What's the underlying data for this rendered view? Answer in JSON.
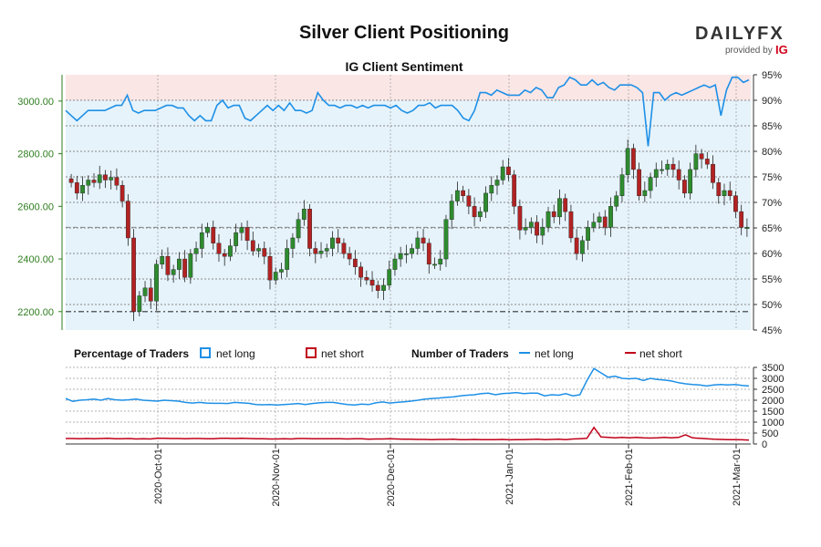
{
  "title": "Silver Client Positioning",
  "subtitle": "IG Client Sentiment",
  "brand": {
    "main": "DAILYFX",
    "provided_by": "provided by",
    "ig": "IG",
    "accent": "#d0021b"
  },
  "legend": {
    "pct_heading": "Percentage of Traders",
    "pct_long": "net long",
    "pct_short": "net short",
    "num_heading": "Number of Traders",
    "num_long": "net long",
    "num_short": "net short"
  },
  "colors": {
    "long": "#1e90e6",
    "short": "#c0001a",
    "bull_candle": "#2e8b2e",
    "bear_candle": "#b22222",
    "long_zone": "#e6f3fb",
    "short_zone": "#fbe6e6",
    "price_axis": "#2e7d1e"
  },
  "chart_data": [
    {
      "type": "candlestick",
      "title": "IG Client Sentiment",
      "price_axis": {
        "ticks": [
          "2200.00",
          "2400.00",
          "2600.00",
          "2800.00",
          "3000.00"
        ],
        "ylim": [
          2130,
          3100
        ]
      },
      "pct_axis": {
        "ticks": [
          "45%",
          "50%",
          "55%",
          "60%",
          "65%",
          "70%",
          "75%",
          "80%",
          "85%",
          "90%",
          "95%"
        ],
        "ylim": [
          45,
          95
        ]
      },
      "x_ticks": [
        "2020-Oct-01",
        "2020-Nov-01",
        "2020-Dec-01",
        "2021-Jan-01",
        "2021-Feb-01",
        "2021-Mar-01"
      ],
      "reference_lines": {
        "price": 2200,
        "last_price": 2520
      },
      "close_series": [
        2690,
        2650,
        2680,
        2700,
        2690,
        2720,
        2700,
        2710,
        2680,
        2620,
        2480,
        2200,
        2260,
        2290,
        2240,
        2380,
        2410,
        2340,
        2360,
        2400,
        2330,
        2420,
        2440,
        2500,
        2520,
        2460,
        2420,
        2410,
        2450,
        2500,
        2520,
        2470,
        2430,
        2440,
        2410,
        2320,
        2350,
        2360,
        2440,
        2480,
        2550,
        2590,
        2440,
        2420,
        2430,
        2440,
        2480,
        2460,
        2420,
        2400,
        2370,
        2330,
        2320,
        2300,
        2280,
        2300,
        2360,
        2400,
        2420,
        2420,
        2440,
        2480,
        2460,
        2380,
        2380,
        2400,
        2550,
        2620,
        2660,
        2640,
        2600,
        2560,
        2580,
        2650,
        2680,
        2700,
        2750,
        2720,
        2600,
        2510,
        2520,
        2540,
        2490,
        2520,
        2580,
        2560,
        2630,
        2580,
        2480,
        2420,
        2470,
        2520,
        2540,
        2560,
        2520,
        2600,
        2640,
        2720,
        2820,
        2740,
        2640,
        2660,
        2710,
        2740,
        2740,
        2760,
        2740,
        2700,
        2650,
        2740,
        2800,
        2780,
        2760,
        2690,
        2640,
        2660,
        2640,
        2580,
        2520,
        2520
      ],
      "long_pct_series": [
        88,
        87,
        86,
        87,
        88,
        88,
        88,
        88,
        88.5,
        89,
        89,
        91,
        88,
        87.5,
        88,
        88,
        88,
        88.5,
        89,
        89,
        88.5,
        88.5,
        87,
        86,
        87,
        86,
        86,
        89,
        90,
        88.5,
        89,
        89,
        86.5,
        86,
        87,
        88,
        89,
        88,
        89,
        88,
        89.5,
        88,
        88,
        87.5,
        88,
        91.5,
        90,
        89,
        89,
        88.5,
        89,
        89,
        88.5,
        89,
        88.5,
        89,
        89,
        89,
        88.5,
        89,
        88,
        87.5,
        88,
        89,
        89,
        89.5,
        88.5,
        89,
        89,
        89,
        88,
        86.5,
        86,
        88,
        91.5,
        91.5,
        91,
        92,
        91.5,
        91,
        91,
        91,
        92,
        91.5,
        92.5,
        92,
        90.5,
        90.5,
        92.5,
        93,
        94.5,
        94,
        93,
        93,
        94,
        93,
        93.5,
        92.5,
        92,
        93,
        93,
        93,
        92.5,
        91.5,
        81,
        91.5,
        91.5,
        90,
        91,
        91.5,
        91,
        91.5,
        92,
        92.5,
        93,
        92.5,
        93,
        87,
        92,
        94.5,
        94.5,
        93.5,
        94
      ]
    },
    {
      "type": "line",
      "title": "Number of Traders",
      "y_ticks": [
        "0",
        "500",
        "1000",
        "1500",
        "2000",
        "2500",
        "3000",
        "3500"
      ],
      "ylim": [
        0,
        3500
      ],
      "x_ticks": [
        "2020-Oct-01",
        "2020-Nov-01",
        "2020-Dec-01",
        "2021-Jan-01",
        "2021-Feb-01",
        "2021-Mar-01"
      ],
      "series": [
        {
          "name": "net long",
          "values": [
            2080,
            1950,
            2000,
            2020,
            2050,
            2000,
            2080,
            2020,
            2000,
            2020,
            2050,
            2000,
            1980,
            1960,
            2000,
            1980,
            1960,
            1900,
            1870,
            1900,
            1870,
            1860,
            1860,
            1850,
            1900,
            1880,
            1860,
            1800,
            1790,
            1800,
            1780,
            1800,
            1820,
            1850,
            1800,
            1850,
            1880,
            1900,
            1900,
            1850,
            1800,
            1780,
            1820,
            1800,
            1880,
            1920,
            1870,
            1900,
            1930,
            1960,
            2000,
            2050,
            2080,
            2100,
            2130,
            2150,
            2200,
            2230,
            2250,
            2300,
            2320,
            2250,
            2300,
            2320,
            2350,
            2300,
            2320,
            2320,
            2200,
            2250,
            2230,
            2300,
            2200,
            2250,
            2900,
            3450,
            3250,
            3050,
            3100,
            3000,
            2980,
            3000,
            2900,
            3000,
            2950,
            2920,
            2880,
            2800,
            2750,
            2720,
            2700,
            2650,
            2700,
            2720,
            2700,
            2720,
            2680,
            2650
          ]
        },
        {
          "name": "net short",
          "values": [
            250,
            250,
            240,
            250,
            240,
            250,
            260,
            240,
            240,
            250,
            230,
            240,
            230,
            260,
            260,
            250,
            250,
            240,
            250,
            250,
            240,
            240,
            260,
            260,
            250,
            260,
            250,
            240,
            240,
            230,
            230,
            240,
            230,
            250,
            250,
            240,
            240,
            240,
            240,
            240,
            230,
            240,
            240,
            220,
            230,
            230,
            240,
            230,
            220,
            220,
            210,
            210,
            200,
            210,
            210,
            220,
            200,
            200,
            210,
            200,
            200,
            200,
            210,
            190,
            200,
            200,
            210,
            220,
            200,
            210,
            220,
            200,
            230,
            240,
            260,
            760,
            320,
            300,
            280,
            300,
            280,
            300,
            280,
            270,
            280,
            300,
            280,
            300,
            420,
            280,
            260,
            240,
            220,
            210,
            200,
            200,
            190,
            180
          ]
        }
      ]
    }
  ]
}
